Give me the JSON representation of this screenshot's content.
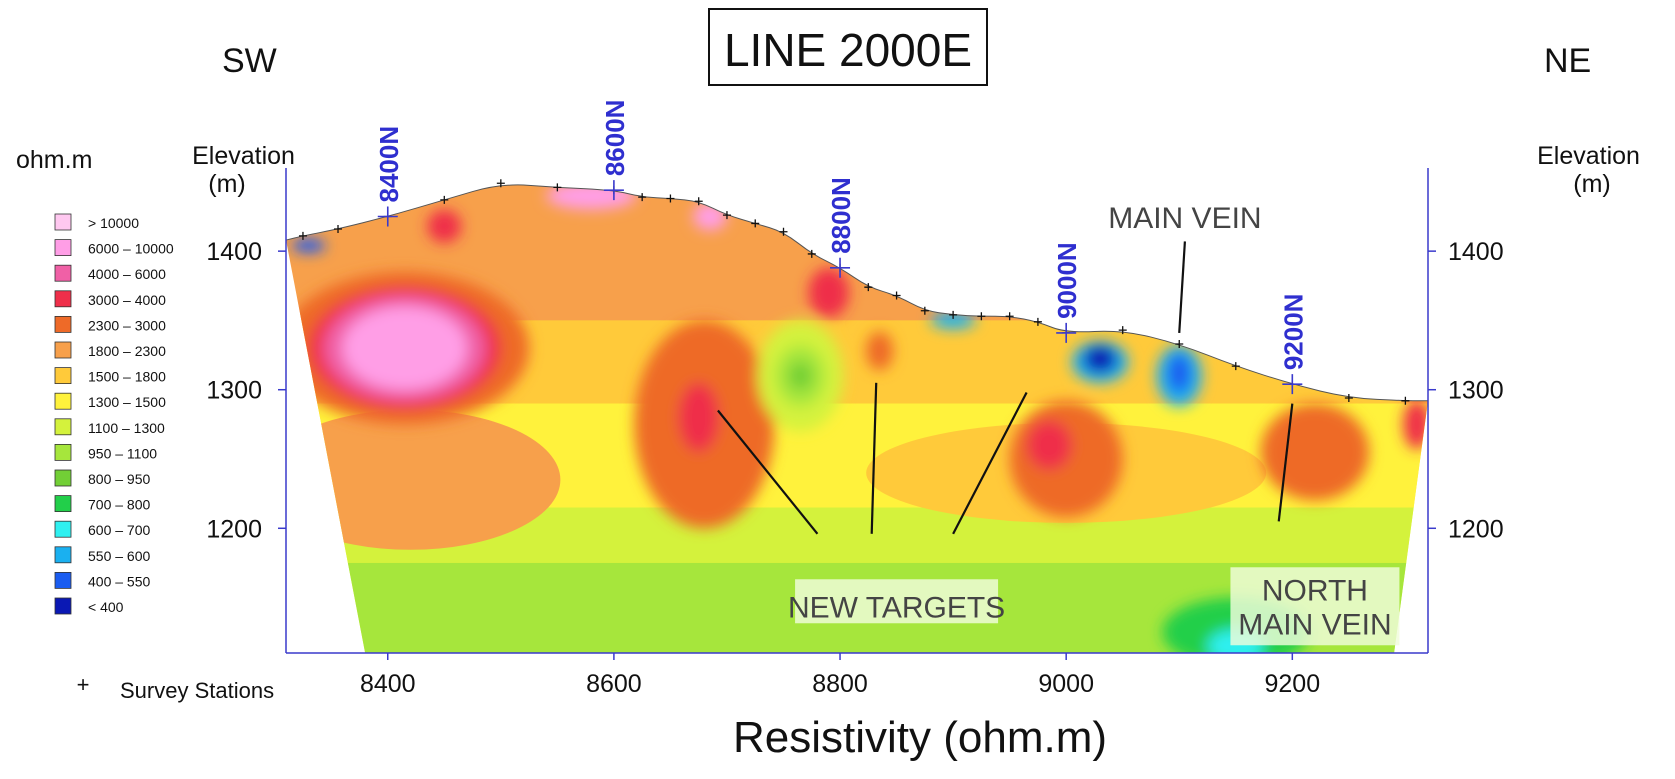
{
  "chart_data": {
    "type": "heatmap",
    "title": "LINE 2000E",
    "direction_left": "SW",
    "direction_right": "NE",
    "xlabel": "Resistivity (ohm.m)",
    "ylabel_left": "Elevation\n(m)",
    "ylabel_right": "Elevation\n(m)",
    "xlim": [
      8310,
      9320
    ],
    "ylim": [
      1110,
      1460
    ],
    "x_ticks": [
      8400,
      8600,
      8800,
      9000,
      9200
    ],
    "y_ticks": [
      1200,
      1300,
      1400
    ],
    "legend": {
      "unit": "ohm.m",
      "placement": "left",
      "items": [
        {
          "label": "> 10000",
          "color": "#ffc8f0"
        },
        {
          "label": "6000 – 10000",
          "color": "#ff9ee6"
        },
        {
          "label": "4000 – 6000",
          "color": "#f060a6"
        },
        {
          "label": "3000 – 4000",
          "color": "#ef2f4a"
        },
        {
          "label": "2300 – 3000",
          "color": "#ee6a28"
        },
        {
          "label": "1800 – 2300",
          "color": "#f7a04b"
        },
        {
          "label": "1500 – 1800",
          "color": "#ffca3a"
        },
        {
          "label": "1300 – 1500",
          "color": "#fff23c"
        },
        {
          "label": "1100 – 1300",
          "color": "#d4f23c"
        },
        {
          "label": "950 – 1100",
          "color": "#a6e63c"
        },
        {
          "label": "800 – 950",
          "color": "#72cf36"
        },
        {
          "label": "700 – 800",
          "color": "#22cf4a"
        },
        {
          "label": "600 – 700",
          "color": "#2ff0f0"
        },
        {
          "label": "550 – 600",
          "color": "#1ab0f0"
        },
        {
          "label": "400 – 550",
          "color": "#1a5cf0"
        },
        {
          "label": "< 400",
          "color": "#0a18b4"
        }
      ],
      "marker_label": "Survey Stations"
    },
    "stations": [
      {
        "label": "8400N",
        "x": 8400,
        "elev": 1425
      },
      {
        "label": "8600N",
        "x": 8600,
        "elev": 1444
      },
      {
        "label": "8800N",
        "x": 8800,
        "elev": 1388
      },
      {
        "label": "9000N",
        "x": 9000,
        "elev": 1341
      },
      {
        "label": "9200N",
        "x": 9200,
        "elev": 1304
      }
    ],
    "topography": [
      {
        "x": 8310,
        "elev": 1408
      },
      {
        "x": 8325,
        "elev": 1411
      },
      {
        "x": 8356,
        "elev": 1416
      },
      {
        "x": 8400,
        "elev": 1425
      },
      {
        "x": 8450,
        "elev": 1437
      },
      {
        "x": 8500,
        "elev": 1449
      },
      {
        "x": 8550,
        "elev": 1446
      },
      {
        "x": 8600,
        "elev": 1444
      },
      {
        "x": 8625,
        "elev": 1439
      },
      {
        "x": 8650,
        "elev": 1438
      },
      {
        "x": 8675,
        "elev": 1436
      },
      {
        "x": 8700,
        "elev": 1426
      },
      {
        "x": 8725,
        "elev": 1420
      },
      {
        "x": 8750,
        "elev": 1414
      },
      {
        "x": 8775,
        "elev": 1398
      },
      {
        "x": 8800,
        "elev": 1388
      },
      {
        "x": 8825,
        "elev": 1374
      },
      {
        "x": 8850,
        "elev": 1368
      },
      {
        "x": 8875,
        "elev": 1357
      },
      {
        "x": 8900,
        "elev": 1354
      },
      {
        "x": 8925,
        "elev": 1353
      },
      {
        "x": 8950,
        "elev": 1353
      },
      {
        "x": 8975,
        "elev": 1349
      },
      {
        "x": 9000,
        "elev": 1341
      },
      {
        "x": 9050,
        "elev": 1343
      },
      {
        "x": 9100,
        "elev": 1333
      },
      {
        "x": 9150,
        "elev": 1317
      },
      {
        "x": 9200,
        "elev": 1304
      },
      {
        "x": 9250,
        "elev": 1294
      },
      {
        "x": 9300,
        "elev": 1292
      },
      {
        "x": 9320,
        "elev": 1292
      }
    ],
    "survey_station_points": [
      {
        "x": 8325,
        "elev": 1411
      },
      {
        "x": 8356,
        "elev": 1416
      },
      {
        "x": 8400,
        "elev": 1425
      },
      {
        "x": 8450,
        "elev": 1437
      },
      {
        "x": 8500,
        "elev": 1449
      },
      {
        "x": 8550,
        "elev": 1446
      },
      {
        "x": 8600,
        "elev": 1444
      },
      {
        "x": 8625,
        "elev": 1439
      },
      {
        "x": 8650,
        "elev": 1438
      },
      {
        "x": 8675,
        "elev": 1436
      },
      {
        "x": 8700,
        "elev": 1426
      },
      {
        "x": 8725,
        "elev": 1420
      },
      {
        "x": 8750,
        "elev": 1414
      },
      {
        "x": 8775,
        "elev": 1398
      },
      {
        "x": 8800,
        "elev": 1388
      },
      {
        "x": 8825,
        "elev": 1374
      },
      {
        "x": 8850,
        "elev": 1368
      },
      {
        "x": 8875,
        "elev": 1357
      },
      {
        "x": 8900,
        "elev": 1354
      },
      {
        "x": 8925,
        "elev": 1353
      },
      {
        "x": 8950,
        "elev": 1353
      },
      {
        "x": 8975,
        "elev": 1349
      },
      {
        "x": 9000,
        "elev": 1341
      },
      {
        "x": 9050,
        "elev": 1343
      },
      {
        "x": 9100,
        "elev": 1333
      },
      {
        "x": 9150,
        "elev": 1317
      },
      {
        "x": 9200,
        "elev": 1304
      },
      {
        "x": 9250,
        "elev": 1294
      },
      {
        "x": 9300,
        "elev": 1292
      }
    ],
    "section_base": {
      "elev": 1110,
      "x_left": 8380,
      "x_right": 9290
    },
    "anomalies": [
      {
        "x": 8415,
        "elev": 1330,
        "rx": 110,
        "ry": 55,
        "color": "#ee6a28"
      },
      {
        "x": 8415,
        "elev": 1330,
        "rx": 85,
        "ry": 44,
        "color": "#ef2f4a"
      },
      {
        "x": 8415,
        "elev": 1330,
        "rx": 72,
        "ry": 38,
        "color": "#f060a6"
      },
      {
        "x": 8415,
        "elev": 1330,
        "rx": 55,
        "ry": 30,
        "color": "#ff9ee6"
      },
      {
        "x": 8680,
        "elev": 1275,
        "rx": 62,
        "ry": 75,
        "color": "#ee6a28"
      },
      {
        "x": 8675,
        "elev": 1280,
        "rx": 18,
        "ry": 25,
        "color": "#ef2f4a"
      },
      {
        "x": 8765,
        "elev": 1310,
        "rx": 38,
        "ry": 40,
        "color": "#d4f23c"
      },
      {
        "x": 8765,
        "elev": 1310,
        "rx": 22,
        "ry": 22,
        "color": "#a6e63c"
      },
      {
        "x": 8765,
        "elev": 1310,
        "rx": 10,
        "ry": 10,
        "color": "#72cf36"
      },
      {
        "x": 8835,
        "elev": 1328,
        "rx": 12,
        "ry": 14,
        "color": "#ee6a28"
      },
      {
        "x": 9000,
        "elev": 1250,
        "rx": 50,
        "ry": 42,
        "color": "#ee6a28"
      },
      {
        "x": 8985,
        "elev": 1260,
        "rx": 20,
        "ry": 18,
        "color": "#ef2f4a"
      },
      {
        "x": 9220,
        "elev": 1255,
        "rx": 48,
        "ry": 35,
        "color": "#ee6a28"
      },
      {
        "x": 9310,
        "elev": 1275,
        "rx": 12,
        "ry": 18,
        "color": "#ef2f4a"
      },
      {
        "x": 9030,
        "elev": 1320,
        "rx": 25,
        "ry": 15,
        "color": "#1ab0f0"
      },
      {
        "x": 9030,
        "elev": 1322,
        "rx": 15,
        "ry": 10,
        "color": "#0a18b4"
      },
      {
        "x": 9100,
        "elev": 1310,
        "rx": 20,
        "ry": 22,
        "color": "#1ab0f0"
      },
      {
        "x": 9100,
        "elev": 1312,
        "rx": 10,
        "ry": 14,
        "color": "#1a5cf0"
      },
      {
        "x": 9150,
        "elev": 1125,
        "rx": 65,
        "ry": 25,
        "color": "#22cf4a"
      },
      {
        "x": 9150,
        "elev": 1115,
        "rx": 25,
        "ry": 12,
        "color": "#2ff0f0"
      },
      {
        "x": 8580,
        "elev": 1440,
        "rx": 40,
        "ry": 10,
        "color": "#ff9ee6"
      },
      {
        "x": 8685,
        "elev": 1425,
        "rx": 15,
        "ry": 10,
        "color": "#ff9ee6"
      },
      {
        "x": 8790,
        "elev": 1370,
        "rx": 18,
        "ry": 18,
        "color": "#ef2f4a"
      },
      {
        "x": 8450,
        "elev": 1418,
        "rx": 15,
        "ry": 12,
        "color": "#ef2f4a"
      },
      {
        "x": 8900,
        "elev": 1350,
        "rx": 20,
        "ry": 6,
        "color": "#1ab0f0"
      },
      {
        "x": 8330,
        "elev": 1404,
        "rx": 15,
        "ry": 5,
        "color": "#1a5cf0"
      }
    ],
    "annotations": [
      {
        "text": "MAIN VEIN",
        "label_x": 9105,
        "label_elev": 1424,
        "lines": [
          {
            "from_x": 9105,
            "from_elev": 1407,
            "to_x": 9100,
            "to_elev": 1341
          }
        ]
      },
      {
        "text": "NEW TARGETS",
        "label_x": 8850,
        "label_elev": 1143,
        "lines": [
          {
            "from_x": 8780,
            "from_elev": 1196,
            "to_x": 8692,
            "to_elev": 1285
          },
          {
            "from_x": 8828,
            "from_elev": 1196,
            "to_x": 8832,
            "to_elev": 1305
          },
          {
            "from_x": 8900,
            "from_elev": 1196,
            "to_x": 8965,
            "to_elev": 1298
          }
        ]
      },
      {
        "text": "NORTH\nMAIN VEIN",
        "label_x": 9220,
        "label_elev": 1143,
        "lines": [
          {
            "from_x": 9188,
            "from_elev": 1205,
            "to_x": 9200,
            "to_elev": 1290
          }
        ]
      }
    ]
  }
}
